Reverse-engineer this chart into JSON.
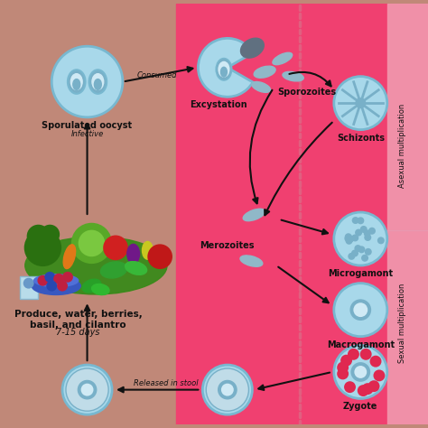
{
  "bg_left_color": "#c08878",
  "bg_right_color": "#f04070",
  "label_strip_color": "#f090a8",
  "cell_fill": "#a8d8ea",
  "cell_border": "#78b8d0",
  "cell_dark": "#78b0c8",
  "cell_light": "#d0eaf5",
  "arrow_color": "#111111",
  "text_dark": "#111111",
  "figsize": [
    4.74,
    4.74
  ],
  "dpi": 100,
  "labels": {
    "sporulated_oocyst": "Sporulated oocyst",
    "infective": "Infective",
    "excystation": "Excystation",
    "sporozoites": "Sporozoites",
    "schizonts": "Schizonts",
    "merozoites": "Merozoites",
    "microgamont": "Microgamont",
    "macrogamont": "Macrogamont",
    "zygote": "Zygote",
    "consumed": "Consumed",
    "released": "Released in stool",
    "produce": "Produce, water, berries,\nbasil, and cilantro",
    "days": "7-15 days",
    "asexual": "Asexual multiplication",
    "sexual": "Sexual multiplication"
  }
}
